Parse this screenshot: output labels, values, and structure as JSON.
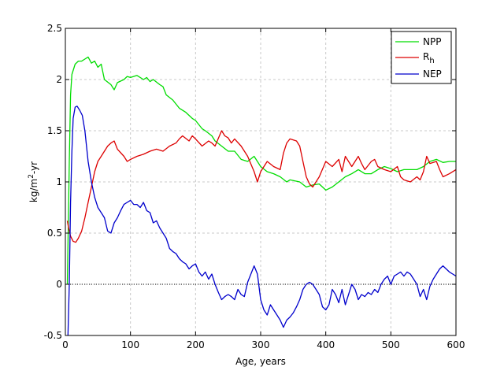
{
  "chart_data": {
    "type": "line",
    "title": "",
    "xlabel": "Age, years",
    "ylabel": "kg/m²-yr",
    "ylabel_parts": {
      "a": "kg/m",
      "sup": "2",
      "b": "-yr"
    },
    "xlim": [
      0,
      600
    ],
    "ylim": [
      -0.5,
      2.5
    ],
    "xticks": [
      0,
      100,
      200,
      300,
      400,
      500,
      600
    ],
    "yticks": [
      -0.5,
      0,
      0.5,
      1,
      1.5,
      2,
      2.5
    ],
    "xtick_labels": [
      "0",
      "100",
      "200",
      "300",
      "400",
      "500",
      "600"
    ],
    "ytick_labels": [
      "-0.5",
      "0",
      "0.5",
      "1",
      "1.5",
      "2",
      "2.5"
    ],
    "grid": true,
    "legend_position": "top-right",
    "zero_line": {
      "y": 0,
      "style": "dotted"
    },
    "series": [
      {
        "name": "NPP",
        "color": "#00dd00",
        "points": [
          [
            3,
            0
          ],
          [
            6,
            1.2
          ],
          [
            8,
            1.85
          ],
          [
            10,
            2.05
          ],
          [
            15,
            2.15
          ],
          [
            20,
            2.18
          ],
          [
            25,
            2.18
          ],
          [
            30,
            2.2
          ],
          [
            35,
            2.22
          ],
          [
            40,
            2.16
          ],
          [
            45,
            2.18
          ],
          [
            50,
            2.12
          ],
          [
            55,
            2.15
          ],
          [
            60,
            2.0
          ],
          [
            70,
            1.95
          ],
          [
            75,
            1.9
          ],
          [
            80,
            1.97
          ],
          [
            90,
            2.0
          ],
          [
            95,
            2.03
          ],
          [
            100,
            2.02
          ],
          [
            110,
            2.04
          ],
          [
            120,
            2.0
          ],
          [
            125,
            2.02
          ],
          [
            130,
            1.98
          ],
          [
            135,
            2.0
          ],
          [
            145,
            1.95
          ],
          [
            150,
            1.93
          ],
          [
            155,
            1.85
          ],
          [
            165,
            1.8
          ],
          [
            175,
            1.72
          ],
          [
            185,
            1.68
          ],
          [
            195,
            1.62
          ],
          [
            200,
            1.6
          ],
          [
            210,
            1.52
          ],
          [
            215,
            1.5
          ],
          [
            225,
            1.45
          ],
          [
            230,
            1.4
          ],
          [
            240,
            1.35
          ],
          [
            250,
            1.3
          ],
          [
            260,
            1.3
          ],
          [
            270,
            1.22
          ],
          [
            280,
            1.2
          ],
          [
            290,
            1.25
          ],
          [
            300,
            1.15
          ],
          [
            310,
            1.1
          ],
          [
            320,
            1.08
          ],
          [
            330,
            1.05
          ],
          [
            340,
            1.0
          ],
          [
            345,
            1.02
          ],
          [
            360,
            1.0
          ],
          [
            370,
            0.95
          ],
          [
            380,
            0.97
          ],
          [
            390,
            0.98
          ],
          [
            400,
            0.92
          ],
          [
            410,
            0.95
          ],
          [
            420,
            1.0
          ],
          [
            430,
            1.05
          ],
          [
            440,
            1.08
          ],
          [
            450,
            1.12
          ],
          [
            460,
            1.08
          ],
          [
            470,
            1.08
          ],
          [
            480,
            1.12
          ],
          [
            490,
            1.15
          ],
          [
            500,
            1.13
          ],
          [
            510,
            1.1
          ],
          [
            520,
            1.12
          ],
          [
            530,
            1.12
          ],
          [
            540,
            1.12
          ],
          [
            550,
            1.15
          ],
          [
            560,
            1.2
          ],
          [
            570,
            1.22
          ],
          [
            580,
            1.19
          ],
          [
            590,
            1.2
          ],
          [
            600,
            1.2
          ]
        ]
      },
      {
        "name": "R",
        "name_sub": "h",
        "color": "#dd0000",
        "points": [
          [
            3,
            0.62
          ],
          [
            5,
            0.55
          ],
          [
            8,
            0.47
          ],
          [
            12,
            0.42
          ],
          [
            16,
            0.41
          ],
          [
            20,
            0.45
          ],
          [
            25,
            0.52
          ],
          [
            30,
            0.65
          ],
          [
            35,
            0.8
          ],
          [
            40,
            0.95
          ],
          [
            45,
            1.1
          ],
          [
            50,
            1.2
          ],
          [
            55,
            1.25
          ],
          [
            60,
            1.3
          ],
          [
            65,
            1.35
          ],
          [
            70,
            1.38
          ],
          [
            75,
            1.4
          ],
          [
            80,
            1.32
          ],
          [
            90,
            1.25
          ],
          [
            95,
            1.2
          ],
          [
            100,
            1.22
          ],
          [
            110,
            1.25
          ],
          [
            120,
            1.27
          ],
          [
            130,
            1.3
          ],
          [
            140,
            1.32
          ],
          [
            150,
            1.3
          ],
          [
            160,
            1.35
          ],
          [
            170,
            1.38
          ],
          [
            175,
            1.42
          ],
          [
            180,
            1.45
          ],
          [
            190,
            1.4
          ],
          [
            195,
            1.45
          ],
          [
            200,
            1.42
          ],
          [
            210,
            1.35
          ],
          [
            220,
            1.4
          ],
          [
            225,
            1.38
          ],
          [
            230,
            1.35
          ],
          [
            240,
            1.5
          ],
          [
            245,
            1.45
          ],
          [
            250,
            1.43
          ],
          [
            255,
            1.38
          ],
          [
            260,
            1.42
          ],
          [
            270,
            1.35
          ],
          [
            280,
            1.25
          ],
          [
            290,
            1.1
          ],
          [
            295,
            1.0
          ],
          [
            300,
            1.1
          ],
          [
            310,
            1.2
          ],
          [
            320,
            1.15
          ],
          [
            330,
            1.12
          ],
          [
            335,
            1.28
          ],
          [
            340,
            1.38
          ],
          [
            345,
            1.42
          ],
          [
            355,
            1.4
          ],
          [
            360,
            1.35
          ],
          [
            365,
            1.2
          ],
          [
            370,
            1.05
          ],
          [
            375,
            0.98
          ],
          [
            380,
            0.95
          ],
          [
            390,
            1.05
          ],
          [
            400,
            1.2
          ],
          [
            410,
            1.15
          ],
          [
            420,
            1.22
          ],
          [
            425,
            1.1
          ],
          [
            430,
            1.25
          ],
          [
            440,
            1.15
          ],
          [
            450,
            1.25
          ],
          [
            455,
            1.18
          ],
          [
            460,
            1.12
          ],
          [
            470,
            1.2
          ],
          [
            475,
            1.22
          ],
          [
            480,
            1.15
          ],
          [
            490,
            1.12
          ],
          [
            500,
            1.1
          ],
          [
            510,
            1.15
          ],
          [
            515,
            1.05
          ],
          [
            520,
            1.02
          ],
          [
            530,
            1.0
          ],
          [
            540,
            1.05
          ],
          [
            545,
            1.02
          ],
          [
            550,
            1.1
          ],
          [
            555,
            1.25
          ],
          [
            560,
            1.18
          ],
          [
            570,
            1.2
          ],
          [
            575,
            1.12
          ],
          [
            580,
            1.05
          ],
          [
            590,
            1.08
          ],
          [
            600,
            1.12
          ]
        ]
      },
      {
        "name": "NEP",
        "color": "#0000cc",
        "points": [
          [
            4,
            -0.5
          ],
          [
            6,
            0.0
          ],
          [
            8,
            0.8
          ],
          [
            10,
            1.3
          ],
          [
            12,
            1.62
          ],
          [
            15,
            1.73
          ],
          [
            18,
            1.74
          ],
          [
            22,
            1.7
          ],
          [
            26,
            1.65
          ],
          [
            30,
            1.5
          ],
          [
            35,
            1.2
          ],
          [
            40,
            1.0
          ],
          [
            45,
            0.85
          ],
          [
            50,
            0.75
          ],
          [
            55,
            0.7
          ],
          [
            60,
            0.65
          ],
          [
            65,
            0.52
          ],
          [
            70,
            0.5
          ],
          [
            75,
            0.6
          ],
          [
            80,
            0.65
          ],
          [
            85,
            0.72
          ],
          [
            90,
            0.78
          ],
          [
            95,
            0.8
          ],
          [
            100,
            0.82
          ],
          [
            105,
            0.78
          ],
          [
            110,
            0.78
          ],
          [
            115,
            0.75
          ],
          [
            120,
            0.8
          ],
          [
            125,
            0.72
          ],
          [
            130,
            0.7
          ],
          [
            135,
            0.6
          ],
          [
            140,
            0.62
          ],
          [
            145,
            0.55
          ],
          [
            150,
            0.5
          ],
          [
            155,
            0.45
          ],
          [
            160,
            0.35
          ],
          [
            165,
            0.32
          ],
          [
            170,
            0.3
          ],
          [
            175,
            0.25
          ],
          [
            180,
            0.22
          ],
          [
            185,
            0.2
          ],
          [
            190,
            0.15
          ],
          [
            195,
            0.18
          ],
          [
            200,
            0.2
          ],
          [
            205,
            0.12
          ],
          [
            210,
            0.08
          ],
          [
            215,
            0.12
          ],
          [
            220,
            0.05
          ],
          [
            225,
            0.1
          ],
          [
            230,
            0.0
          ],
          [
            235,
            -0.08
          ],
          [
            240,
            -0.15
          ],
          [
            245,
            -0.12
          ],
          [
            250,
            -0.1
          ],
          [
            255,
            -0.12
          ],
          [
            260,
            -0.15
          ],
          [
            265,
            -0.05
          ],
          [
            270,
            -0.1
          ],
          [
            275,
            -0.12
          ],
          [
            280,
            0.02
          ],
          [
            285,
            0.1
          ],
          [
            290,
            0.18
          ],
          [
            295,
            0.1
          ],
          [
            300,
            -0.15
          ],
          [
            305,
            -0.25
          ],
          [
            310,
            -0.3
          ],
          [
            315,
            -0.2
          ],
          [
            320,
            -0.25
          ],
          [
            325,
            -0.3
          ],
          [
            330,
            -0.35
          ],
          [
            335,
            -0.42
          ],
          [
            340,
            -0.35
          ],
          [
            345,
            -0.32
          ],
          [
            350,
            -0.28
          ],
          [
            355,
            -0.22
          ],
          [
            360,
            -0.15
          ],
          [
            365,
            -0.05
          ],
          [
            370,
            0.0
          ],
          [
            375,
            0.02
          ],
          [
            380,
            0.0
          ],
          [
            385,
            -0.05
          ],
          [
            390,
            -0.1
          ],
          [
            395,
            -0.22
          ],
          [
            400,
            -0.25
          ],
          [
            405,
            -0.2
          ],
          [
            410,
            -0.05
          ],
          [
            415,
            -0.1
          ],
          [
            420,
            -0.18
          ],
          [
            425,
            -0.05
          ],
          [
            430,
            -0.2
          ],
          [
            435,
            -0.1
          ],
          [
            440,
            0.0
          ],
          [
            445,
            -0.05
          ],
          [
            450,
            -0.15
          ],
          [
            455,
            -0.1
          ],
          [
            460,
            -0.12
          ],
          [
            465,
            -0.08
          ],
          [
            470,
            -0.1
          ],
          [
            475,
            -0.05
          ],
          [
            480,
            -0.08
          ],
          [
            485,
            0.0
          ],
          [
            490,
            0.05
          ],
          [
            495,
            0.08
          ],
          [
            500,
            0.0
          ],
          [
            505,
            0.08
          ],
          [
            510,
            0.1
          ],
          [
            515,
            0.12
          ],
          [
            520,
            0.08
          ],
          [
            525,
            0.12
          ],
          [
            530,
            0.1
          ],
          [
            535,
            0.05
          ],
          [
            540,
            0.0
          ],
          [
            545,
            -0.12
          ],
          [
            550,
            -0.05
          ],
          [
            555,
            -0.15
          ],
          [
            560,
            -0.02
          ],
          [
            565,
            0.05
          ],
          [
            570,
            0.1
          ],
          [
            575,
            0.15
          ],
          [
            580,
            0.18
          ],
          [
            585,
            0.15
          ],
          [
            590,
            0.12
          ],
          [
            595,
            0.1
          ],
          [
            600,
            0.08
          ]
        ]
      }
    ]
  }
}
